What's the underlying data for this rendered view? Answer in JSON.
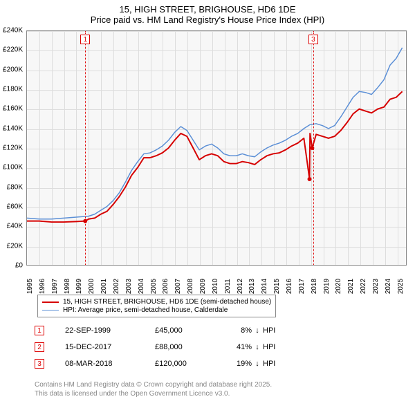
{
  "title": {
    "line1": "15, HIGH STREET, BRIGHOUSE, HD6 1DE",
    "line2": "Price paid vs. HM Land Registry's House Price Index (HPI)"
  },
  "chart": {
    "type": "line",
    "background_color": "#f7f7f7",
    "grid_color": "#dddddd",
    "border_color": "#888888",
    "x": {
      "min": 1995,
      "max": 2025.8,
      "tick_step": 1,
      "labels": [
        "1995",
        "1996",
        "1997",
        "1998",
        "1999",
        "2000",
        "2001",
        "2002",
        "2003",
        "2004",
        "2005",
        "2006",
        "2007",
        "2008",
        "2009",
        "2010",
        "2011",
        "2012",
        "2013",
        "2014",
        "2015",
        "2016",
        "2017",
        "2018",
        "2019",
        "2020",
        "2021",
        "2022",
        "2023",
        "2024",
        "2025"
      ]
    },
    "y": {
      "min": 0,
      "max": 240000,
      "tick_step": 20000,
      "labels": [
        "£0",
        "£20K",
        "£40K",
        "£60K",
        "£80K",
        "£100K",
        "£120K",
        "£140K",
        "£160K",
        "£180K",
        "£200K",
        "£220K",
        "£240K"
      ]
    },
    "events": [
      {
        "num": "1",
        "x": 1999.73
      },
      {
        "num": "3",
        "x": 2018.18
      }
    ],
    "series": [
      {
        "name": "price_paid",
        "color": "#d60000",
        "width": 2,
        "points": [
          [
            1995,
            45000
          ],
          [
            1996,
            45000
          ],
          [
            1997,
            44000
          ],
          [
            1998,
            44000
          ],
          [
            1999,
            44500
          ],
          [
            1999.73,
            45000
          ],
          [
            2000,
            47000
          ],
          [
            2000.5,
            48000
          ],
          [
            2001,
            52000
          ],
          [
            2001.5,
            55000
          ],
          [
            2002,
            62000
          ],
          [
            2002.5,
            70000
          ],
          [
            2003,
            80000
          ],
          [
            2003.5,
            92000
          ],
          [
            2004,
            100000
          ],
          [
            2004.5,
            110000
          ],
          [
            2005,
            110000
          ],
          [
            2005.5,
            112000
          ],
          [
            2006,
            115000
          ],
          [
            2006.5,
            120000
          ],
          [
            2007,
            128000
          ],
          [
            2007.5,
            135000
          ],
          [
            2008,
            132000
          ],
          [
            2008.5,
            120000
          ],
          [
            2009,
            108000
          ],
          [
            2009.5,
            112000
          ],
          [
            2010,
            114000
          ],
          [
            2010.5,
            112000
          ],
          [
            2011,
            106000
          ],
          [
            2011.5,
            104000
          ],
          [
            2012,
            104000
          ],
          [
            2012.5,
            106000
          ],
          [
            2013,
            105000
          ],
          [
            2013.5,
            103000
          ],
          [
            2014,
            108000
          ],
          [
            2014.5,
            112000
          ],
          [
            2015,
            114000
          ],
          [
            2015.5,
            115000
          ],
          [
            2016,
            118000
          ],
          [
            2016.5,
            122000
          ],
          [
            2017,
            125000
          ],
          [
            2017.5,
            130000
          ],
          [
            2017.96,
            88000
          ],
          [
            2018,
            135000
          ],
          [
            2018.18,
            120000
          ],
          [
            2018.5,
            134000
          ],
          [
            2019,
            132000
          ],
          [
            2019.5,
            130000
          ],
          [
            2020,
            132000
          ],
          [
            2020.5,
            138000
          ],
          [
            2021,
            146000
          ],
          [
            2021.5,
            155000
          ],
          [
            2022,
            160000
          ],
          [
            2022.5,
            158000
          ],
          [
            2023,
            156000
          ],
          [
            2023.5,
            160000
          ],
          [
            2024,
            162000
          ],
          [
            2024.5,
            170000
          ],
          [
            2025,
            172000
          ],
          [
            2025.5,
            178000
          ]
        ],
        "markers": [
          {
            "x": 1999.73,
            "y": 45000
          },
          {
            "x": 2017.96,
            "y": 88000
          },
          {
            "x": 2018.18,
            "y": 120000
          }
        ]
      },
      {
        "name": "hpi",
        "color": "#5b8fd6",
        "width": 1.5,
        "points": [
          [
            1995,
            48000
          ],
          [
            1996,
            47000
          ],
          [
            1997,
            47000
          ],
          [
            1998,
            48000
          ],
          [
            1999,
            49000
          ],
          [
            2000,
            50000
          ],
          [
            2000.5,
            52000
          ],
          [
            2001,
            56000
          ],
          [
            2001.5,
            60000
          ],
          [
            2002,
            66000
          ],
          [
            2002.5,
            74000
          ],
          [
            2003,
            85000
          ],
          [
            2003.5,
            97000
          ],
          [
            2004,
            106000
          ],
          [
            2004.5,
            114000
          ],
          [
            2005,
            115000
          ],
          [
            2005.5,
            118000
          ],
          [
            2006,
            122000
          ],
          [
            2006.5,
            128000
          ],
          [
            2007,
            136000
          ],
          [
            2007.5,
            142000
          ],
          [
            2008,
            138000
          ],
          [
            2008.5,
            128000
          ],
          [
            2009,
            118000
          ],
          [
            2009.5,
            122000
          ],
          [
            2010,
            124000
          ],
          [
            2010.5,
            120000
          ],
          [
            2011,
            114000
          ],
          [
            2011.5,
            112000
          ],
          [
            2012,
            112000
          ],
          [
            2012.5,
            114000
          ],
          [
            2013,
            112000
          ],
          [
            2013.5,
            111000
          ],
          [
            2014,
            116000
          ],
          [
            2014.5,
            120000
          ],
          [
            2015,
            123000
          ],
          [
            2015.5,
            125000
          ],
          [
            2016,
            128000
          ],
          [
            2016.5,
            132000
          ],
          [
            2017,
            135000
          ],
          [
            2017.5,
            140000
          ],
          [
            2018,
            144000
          ],
          [
            2018.5,
            145000
          ],
          [
            2019,
            143000
          ],
          [
            2019.5,
            140000
          ],
          [
            2020,
            143000
          ],
          [
            2020.5,
            152000
          ],
          [
            2021,
            162000
          ],
          [
            2021.5,
            172000
          ],
          [
            2022,
            178000
          ],
          [
            2022.5,
            177000
          ],
          [
            2023,
            175000
          ],
          [
            2023.5,
            182000
          ],
          [
            2024,
            190000
          ],
          [
            2024.5,
            205000
          ],
          [
            2025,
            212000
          ],
          [
            2025.5,
            223000
          ]
        ]
      }
    ]
  },
  "legend": {
    "items": [
      {
        "color": "#d60000",
        "width": 2,
        "label": "15, HIGH STREET, BRIGHOUSE, HD6 1DE (semi-detached house)"
      },
      {
        "color": "#5b8fd6",
        "width": 1.5,
        "label": "HPI: Average price, semi-detached house, Calderdale"
      }
    ]
  },
  "events_table": [
    {
      "num": "1",
      "date": "22-SEP-1999",
      "price": "£45,000",
      "diff": "8%",
      "arrow": "↓",
      "suffix": "HPI"
    },
    {
      "num": "2",
      "date": "15-DEC-2017",
      "price": "£88,000",
      "diff": "41%",
      "arrow": "↓",
      "suffix": "HPI"
    },
    {
      "num": "3",
      "date": "08-MAR-2018",
      "price": "£120,000",
      "diff": "19%",
      "arrow": "↓",
      "suffix": "HPI"
    }
  ],
  "footer": {
    "line1": "Contains HM Land Registry data © Crown copyright and database right 2025.",
    "line2": "This data is licensed under the Open Government Licence v3.0."
  }
}
